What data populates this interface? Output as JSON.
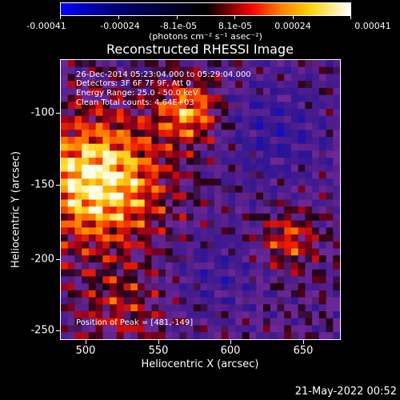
{
  "colorbar": {
    "tick_labels": [
      "-0.00041",
      "-0.00024",
      "-8.1e-05",
      "8.1e-05",
      "0.00024",
      "0.00041"
    ],
    "unit_label": "(photons cm⁻² s⁻¹ asec⁻²)"
  },
  "title": "Reconstructed RHESSI Image",
  "annotations": {
    "time_range": "26-Dec-2014 05:23:04.000 to 05:29:04.000",
    "detectors": "Detectors: 3F 6F 7F 9F, Att 0",
    "energy_range": "Energy Range: 25.0 - 50.0 keV",
    "algorithm_counts": "Clean     Total counts: 4.64E+03",
    "peak_position": "Position of Peak = [481,-149]"
  },
  "axes": {
    "xlabel": "Heliocentric X (arcsec)",
    "ylabel": "Heliocentric Y (arcsec)",
    "x_tick_labels": [
      "500",
      "550",
      "600",
      "650"
    ],
    "y_tick_labels": [
      "-100",
      "-150",
      "-200",
      "-250"
    ]
  },
  "timestamp": "21-May-2022 00:52"
}
